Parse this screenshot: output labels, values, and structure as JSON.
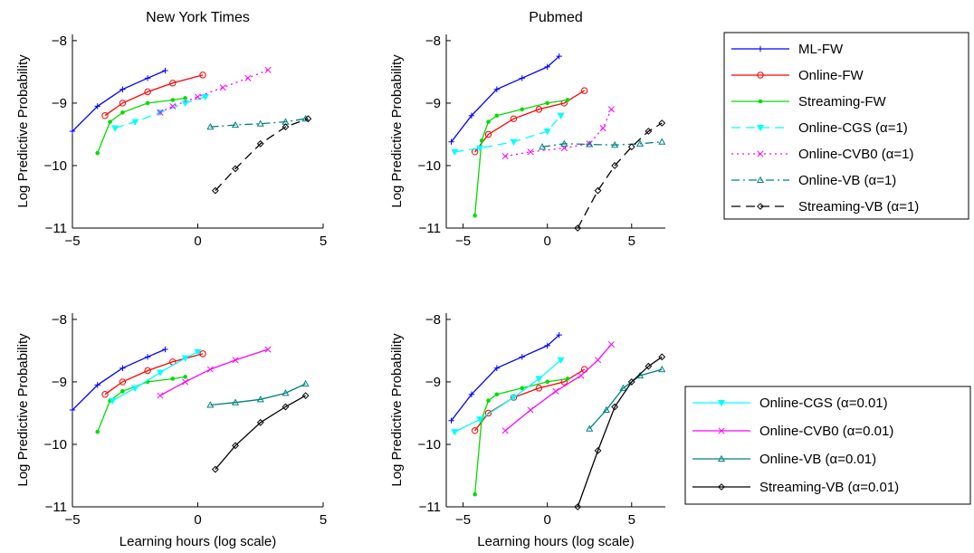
{
  "series_styles": {
    "ML-FW": {
      "color": "#0000ff",
      "dash": "",
      "marker": "plus"
    },
    "Online-FW": {
      "color": "#ff0000",
      "dash": "",
      "marker": "circle"
    },
    "Streaming-FW": {
      "color": "#00dd00",
      "dash": "",
      "marker": "dot"
    },
    "Online-CGS (α=1)": {
      "color": "#00ffff",
      "dash": "10,6",
      "marker": "tridown"
    },
    "Online-CVB0 (α=1)": {
      "color": "#ff00ff",
      "dash": "2,4",
      "marker": "x"
    },
    "Online-VB (α=1)": {
      "color": "#008080",
      "dash": "9,4,2,4",
      "marker": "triup"
    },
    "Streaming-VB (α=1)": {
      "color": "#000000",
      "dash": "10,6",
      "marker": "diamond"
    },
    "Online-CGS (α=0.01)": {
      "color": "#00ffff",
      "dash": "",
      "marker": "tridown"
    },
    "Online-CVB0 (α=0.01)": {
      "color": "#ff00ff",
      "dash": "",
      "marker": "x"
    },
    "Online-VB (α=0.01)": {
      "color": "#008080",
      "dash": "",
      "marker": "triup"
    },
    "Streaming-VB (α=0.01)": {
      "color": "#000000",
      "dash": "",
      "marker": "diamond"
    }
  },
  "legend_top": [
    "ML-FW",
    "Online-FW",
    "Streaming-FW",
    "Online-CGS (α=1)",
    "Online-CVB0 (α=1)",
    "Online-VB (α=1)",
    "Streaming-VB (α=1)"
  ],
  "legend_bottom": [
    "Online-CGS (α=0.01)",
    "Online-CVB0 (α=0.01)",
    "Online-VB (α=0.01)",
    "Streaming-VB (α=0.01)"
  ],
  "chart_data": [
    {
      "type": "line",
      "title": "New York Times",
      "xlabel": "",
      "ylabel": "Log Predictive Probability",
      "xlim": [
        -5,
        5
      ],
      "ylim": [
        -11,
        -7.9
      ],
      "xticks": [
        -5,
        0,
        5
      ],
      "yticks": [
        -11,
        -10,
        -9,
        -8
      ],
      "series": [
        {
          "name": "ML-FW",
          "x": [
            -5,
            -4,
            -3,
            -2,
            -1.3
          ],
          "y": [
            -9.45,
            -9.05,
            -8.78,
            -8.6,
            -8.48
          ]
        },
        {
          "name": "Online-FW",
          "x": [
            -3.7,
            -3,
            -2,
            -1,
            0.2
          ],
          "y": [
            -9.2,
            -9.0,
            -8.82,
            -8.68,
            -8.55
          ]
        },
        {
          "name": "Streaming-FW",
          "x": [
            -4,
            -3.5,
            -3,
            -2,
            -1,
            -0.5
          ],
          "y": [
            -9.8,
            -9.3,
            -9.15,
            -9.0,
            -8.95,
            -8.92
          ]
        },
        {
          "name": "Online-CGS (α=1)",
          "x": [
            -3.3,
            -2.5,
            -1.5,
            -0.5,
            0.3
          ],
          "y": [
            -9.4,
            -9.3,
            -9.15,
            -9.0,
            -8.9
          ]
        },
        {
          "name": "Online-CVB0 (α=1)",
          "x": [
            -1.5,
            -1,
            0,
            1,
            2,
            2.8
          ],
          "y": [
            -9.15,
            -9.05,
            -8.9,
            -8.75,
            -8.6,
            -8.47
          ]
        },
        {
          "name": "Online-VB (α=1)",
          "x": [
            0.5,
            1.5,
            2.5,
            3.5,
            4.3
          ],
          "y": [
            -9.38,
            -9.35,
            -9.33,
            -9.3,
            -9.25
          ]
        },
        {
          "name": "Streaming-VB (α=1)",
          "x": [
            0.7,
            1.5,
            2.5,
            3.5,
            4.4
          ],
          "y": [
            -10.4,
            -10.05,
            -9.65,
            -9.38,
            -9.25
          ]
        }
      ]
    },
    {
      "type": "line",
      "title": "Pubmed",
      "xlabel": "",
      "ylabel": "Log Predictive Probability",
      "xlim": [
        -6,
        7
      ],
      "ylim": [
        -11,
        -7.9
      ],
      "xticks": [
        -5,
        0,
        5
      ],
      "yticks": [
        -11,
        -10,
        -9,
        -8
      ],
      "series": [
        {
          "name": "ML-FW",
          "x": [
            -5.7,
            -4.5,
            -3,
            -1.5,
            0,
            0.7
          ],
          "y": [
            -9.62,
            -9.2,
            -8.78,
            -8.6,
            -8.42,
            -8.25
          ]
        },
        {
          "name": "Online-FW",
          "x": [
            -4.3,
            -3.5,
            -2,
            -0.5,
            1,
            2.2
          ],
          "y": [
            -9.78,
            -9.5,
            -9.25,
            -9.1,
            -9.0,
            -8.8
          ]
        },
        {
          "name": "Streaming-FW",
          "x": [
            -4.3,
            -3.9,
            -3.5,
            -3,
            -1.5,
            0,
            1.2
          ],
          "y": [
            -10.8,
            -9.6,
            -9.3,
            -9.2,
            -9.1,
            -9.0,
            -8.95
          ]
        },
        {
          "name": "Online-CGS (α=1)",
          "x": [
            -5.5,
            -4,
            -2,
            0,
            0.8
          ],
          "y": [
            -9.78,
            -9.72,
            -9.62,
            -9.45,
            -9.2
          ]
        },
        {
          "name": "Online-CVB0 (α=1)",
          "x": [
            -2.5,
            -1,
            1,
            2.5,
            3.3,
            3.8
          ],
          "y": [
            -9.85,
            -9.78,
            -9.72,
            -9.65,
            -9.4,
            -9.1
          ]
        },
        {
          "name": "Online-VB (α=1)",
          "x": [
            -0.3,
            1,
            2.5,
            4,
            5.5,
            6.8
          ],
          "y": [
            -9.7,
            -9.65,
            -9.66,
            -9.67,
            -9.65,
            -9.62
          ]
        },
        {
          "name": "Streaming-VB (α=1)",
          "x": [
            1.8,
            3,
            4,
            5,
            6,
            6.8
          ],
          "y": [
            -11,
            -10.4,
            -10.0,
            -9.7,
            -9.45,
            -9.32
          ]
        }
      ]
    },
    {
      "type": "line",
      "title": "",
      "xlabel": "Learning hours (log scale)",
      "ylabel": "Log Predictive Probability",
      "xlim": [
        -5,
        5
      ],
      "ylim": [
        -11,
        -7.9
      ],
      "xticks": [
        -5,
        0,
        5
      ],
      "yticks": [
        -11,
        -10,
        -9,
        -8
      ],
      "series": [
        {
          "name": "ML-FW",
          "x": [
            -5,
            -4,
            -3,
            -2,
            -1.3
          ],
          "y": [
            -9.45,
            -9.05,
            -8.78,
            -8.6,
            -8.48
          ]
        },
        {
          "name": "Online-FW",
          "x": [
            -3.7,
            -3,
            -2,
            -1,
            0.2
          ],
          "y": [
            -9.2,
            -9.0,
            -8.82,
            -8.68,
            -8.55
          ]
        },
        {
          "name": "Streaming-FW",
          "x": [
            -4,
            -3.5,
            -3,
            -2,
            -1,
            -0.5
          ],
          "y": [
            -9.8,
            -9.3,
            -9.15,
            -9.0,
            -8.95,
            -8.92
          ]
        },
        {
          "name": "Online-CGS (α=0.01)",
          "x": [
            -3.4,
            -2.5,
            -1.5,
            -0.5,
            0
          ],
          "y": [
            -9.3,
            -9.1,
            -8.85,
            -8.62,
            -8.52
          ]
        },
        {
          "name": "Online-CVB0 (α=0.01)",
          "x": [
            -1.5,
            -0.5,
            0.5,
            1.5,
            2.8
          ],
          "y": [
            -9.22,
            -9.0,
            -8.8,
            -8.65,
            -8.48
          ]
        },
        {
          "name": "Online-VB (α=0.01)",
          "x": [
            0.5,
            1.5,
            2.5,
            3.5,
            4.3
          ],
          "y": [
            -9.37,
            -9.33,
            -9.28,
            -9.18,
            -9.03
          ]
        },
        {
          "name": "Streaming-VB (α=0.01)",
          "x": [
            0.7,
            1.5,
            2.5,
            3.5,
            4.3
          ],
          "y": [
            -10.4,
            -10.02,
            -9.65,
            -9.4,
            -9.22
          ]
        }
      ]
    },
    {
      "type": "line",
      "title": "",
      "xlabel": "Learning hours (log scale)",
      "ylabel": "Log Predictive Probability",
      "xlim": [
        -6,
        7
      ],
      "ylim": [
        -11,
        -7.9
      ],
      "xticks": [
        -5,
        0,
        5
      ],
      "yticks": [
        -11,
        -10,
        -9,
        -8
      ],
      "series": [
        {
          "name": "ML-FW",
          "x": [
            -5.7,
            -4.5,
            -3,
            -1.5,
            0,
            0.7
          ],
          "y": [
            -9.62,
            -9.2,
            -8.78,
            -8.6,
            -8.42,
            -8.25
          ]
        },
        {
          "name": "Online-FW",
          "x": [
            -4.3,
            -3.5,
            -2,
            -0.5,
            1,
            2.2
          ],
          "y": [
            -9.78,
            -9.5,
            -9.25,
            -9.1,
            -9.0,
            -8.8
          ]
        },
        {
          "name": "Streaming-FW",
          "x": [
            -4.3,
            -3.9,
            -3.5,
            -3,
            -1.5,
            0,
            1.2
          ],
          "y": [
            -10.8,
            -9.6,
            -9.3,
            -9.2,
            -9.1,
            -9.0,
            -8.95
          ]
        },
        {
          "name": "Online-CGS (α=0.01)",
          "x": [
            -5.5,
            -4,
            -2,
            -0.5,
            0.8
          ],
          "y": [
            -9.8,
            -9.6,
            -9.25,
            -8.95,
            -8.65
          ]
        },
        {
          "name": "Online-CVB0 (α=0.01)",
          "x": [
            -2.5,
            -1,
            0.5,
            2,
            3,
            3.8
          ],
          "y": [
            -9.78,
            -9.45,
            -9.15,
            -8.9,
            -8.65,
            -8.4
          ]
        },
        {
          "name": "Online-VB (α=0.01)",
          "x": [
            2.5,
            3.5,
            4.5,
            5.5,
            6.8
          ],
          "y": [
            -9.75,
            -9.45,
            -9.1,
            -8.9,
            -8.8
          ]
        },
        {
          "name": "Streaming-VB (α=0.01)",
          "x": [
            1.8,
            3,
            4,
            5,
            6,
            6.8
          ],
          "y": [
            -11,
            -10.1,
            -9.4,
            -9.0,
            -8.75,
            -8.6
          ]
        }
      ]
    }
  ]
}
